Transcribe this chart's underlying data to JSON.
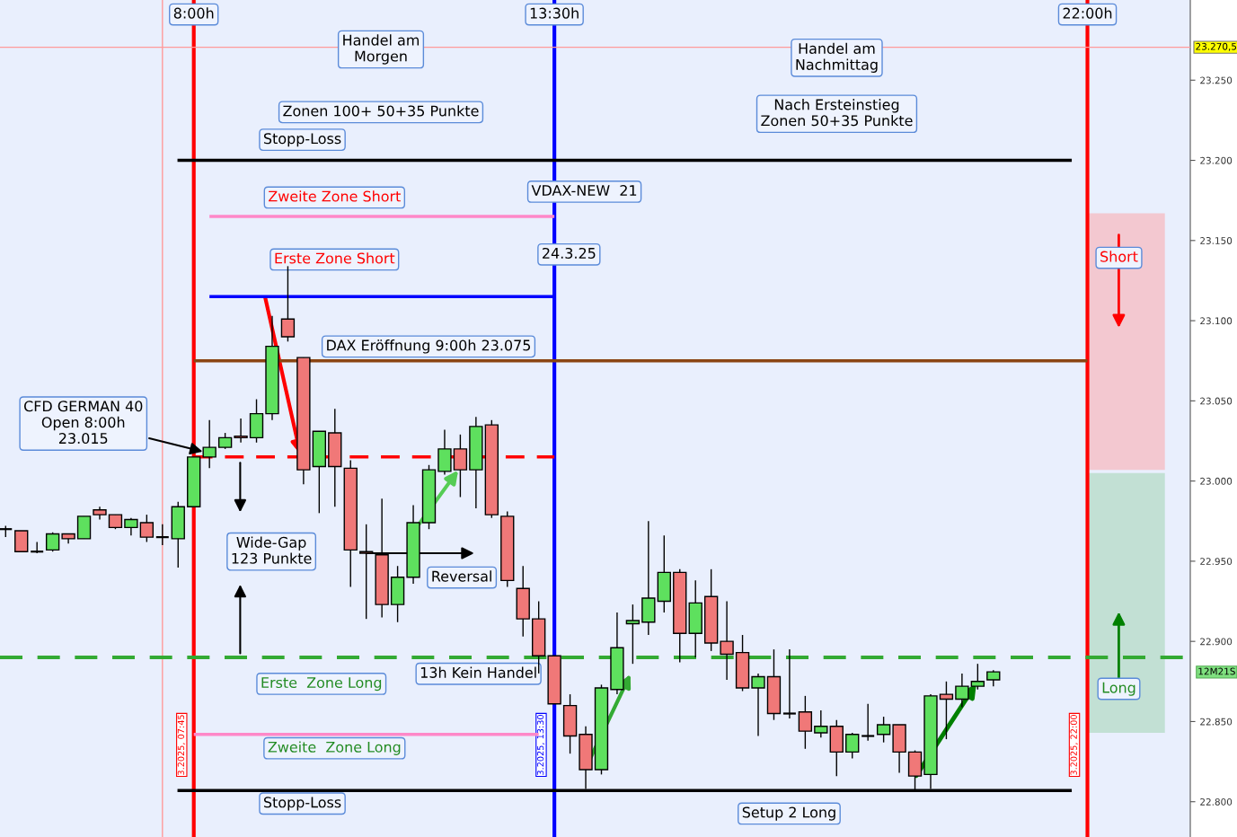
{
  "chart_data": {
    "type": "candlestick",
    "x": [
      4.75,
      5.0,
      5.25,
      5.5,
      5.75,
      6.0,
      6.25,
      6.5,
      6.75,
      7.0,
      7.25,
      7.5,
      7.75,
      8.0,
      8.25,
      8.5,
      8.75,
      9.0,
      9.25,
      9.5,
      9.75,
      10.0,
      10.25,
      10.5,
      10.75,
      11.0,
      11.25,
      11.5,
      11.75,
      12.0,
      12.25,
      12.5,
      12.75,
      13.0,
      13.25,
      13.5,
      13.75,
      14.0,
      14.25,
      14.5,
      14.75,
      15.0,
      15.25,
      15.5,
      15.75,
      16.0,
      16.25,
      16.5,
      16.75,
      17.0,
      17.25,
      17.5,
      17.75,
      18.0,
      18.25,
      18.5,
      18.75,
      19.0,
      19.25,
      19.5,
      19.75,
      20.0,
      20.25,
      20.5
    ],
    "ohlc": [
      [
        22970,
        22972,
        22965,
        22970
      ],
      [
        22969,
        22969,
        22956,
        22956
      ],
      [
        22956,
        22962,
        22955,
        22956
      ],
      [
        22957,
        22968,
        22956,
        22967
      ],
      [
        22967,
        22967,
        22961,
        22964
      ],
      [
        22964,
        22978,
        22964,
        22978
      ],
      [
        22982,
        22984,
        22976,
        22979
      ],
      [
        22979,
        22979,
        22970,
        22971
      ],
      [
        22971,
        22977,
        22966,
        22976
      ],
      [
        22974,
        22979,
        22962,
        22965
      ],
      [
        22965,
        22973,
        22960,
        22965
      ],
      [
        22964,
        22987,
        22946,
        22984
      ],
      [
        22984,
        23015,
        22984,
        23015
      ],
      [
        23015,
        23038,
        23008,
        23021
      ],
      [
        23021,
        23030,
        23020,
        23027
      ],
      [
        23028,
        23039,
        23024,
        23027
      ],
      [
        23027,
        23051,
        23024,
        23042
      ],
      [
        23042,
        23103,
        23038,
        23084
      ],
      [
        23101,
        23134,
        23087,
        23090
      ],
      [
        23077,
        23077,
        22998,
        23007
      ],
      [
        23009,
        23031,
        22980,
        23031
      ],
      [
        23030,
        23045,
        22984,
        23009
      ],
      [
        23008,
        23013,
        22934,
        22957
      ],
      [
        22956,
        22973,
        22914,
        22955
      ],
      [
        22954,
        22989,
        22915,
        22923
      ],
      [
        22923,
        22947,
        22912,
        22940
      ],
      [
        22940,
        22985,
        22936,
        22974
      ],
      [
        22974,
        23010,
        22970,
        23007
      ],
      [
        23006,
        23032,
        23004,
        23020
      ],
      [
        23020,
        23029,
        22990,
        23007
      ],
      [
        23007,
        23040,
        22983,
        23034
      ],
      [
        23035,
        23038,
        22977,
        22979
      ],
      [
        22978,
        22981,
        22934,
        22938
      ],
      [
        22933,
        22947,
        22903,
        22914
      ],
      [
        22914,
        22925,
        22880,
        22891
      ],
      [
        22891,
        22891,
        22861,
        22861
      ],
      [
        22860,
        22867,
        22830,
        22841
      ],
      [
        22842,
        22847,
        22808,
        22820
      ],
      [
        22820,
        22873,
        22817,
        22871
      ],
      [
        22870,
        22918,
        22867,
        22896
      ],
      [
        22911,
        22923,
        22886,
        22913
      ],
      [
        22912,
        22975,
        22904,
        22927
      ],
      [
        22925,
        22966,
        22918,
        22943
      ],
      [
        22943,
        22945,
        22887,
        22905
      ],
      [
        22905,
        22938,
        22890,
        22924
      ],
      [
        22928,
        22945,
        22894,
        22899
      ],
      [
        22900,
        22925,
        22876,
        22892
      ],
      [
        22893,
        22904,
        22869,
        22871
      ],
      [
        22871,
        22880,
        22841,
        22878
      ],
      [
        22878,
        22895,
        22851,
        22855
      ],
      [
        22855,
        22895,
        22852,
        22855
      ],
      [
        22856,
        22866,
        22833,
        22844
      ],
      [
        22843,
        22857,
        22840,
        22847
      ],
      [
        22847,
        22851,
        22816,
        22831
      ],
      [
        22831,
        22843,
        22827,
        22842
      ],
      [
        22841,
        22861,
        22838,
        22841
      ],
      [
        22842,
        22853,
        22837,
        22848
      ],
      [
        22848,
        22848,
        22818,
        22831
      ],
      [
        22831,
        22832,
        22806,
        22816
      ],
      [
        22817,
        22867,
        22808,
        22866
      ],
      [
        22867,
        22875,
        22839,
        22864
      ],
      [
        22864,
        22880,
        22859,
        22872
      ],
      [
        22872,
        22886,
        22870,
        22875
      ],
      [
        22876,
        22882,
        22872,
        22881
      ]
    ],
    "colors": [
      "#000000",
      "#f07878",
      "#000000",
      "#5ee05e",
      "#f07878",
      "#5ee05e",
      "#f07878",
      "#f07878",
      "#5ee05e",
      "#f07878",
      "#000000",
      "#5ee05e",
      "#5ee05e",
      "#5ee05e",
      "#5ee05e",
      "#f07878",
      "#5ee05e",
      "#5ee05e",
      "#f07878",
      "#f07878",
      "#5ee05e",
      "#f07878",
      "#f07878",
      "#f07878",
      "#f07878",
      "#5ee05e",
      "#5ee05e",
      "#5ee05e",
      "#5ee05e",
      "#f07878",
      "#5ee05e",
      "#f07878",
      "#f07878",
      "#f07878",
      "#f07878",
      "#f07878",
      "#f07878",
      "#f07878",
      "#5ee05e",
      "#5ee05e",
      "#5ee05e",
      "#5ee05e",
      "#5ee05e",
      "#f07878",
      "#5ee05e",
      "#f07878",
      "#f07878",
      "#f07878",
      "#5ee05e",
      "#f07878",
      "#000000",
      "#f07878",
      "#5ee05e",
      "#f07878",
      "#5ee05e",
      "#000000",
      "#5ee05e",
      "#f07878",
      "#f07878",
      "#5ee05e",
      "#f07878",
      "#5ee05e",
      "#5ee05e",
      "#5ee05e"
    ],
    "series": [
      {
        "type": "line",
        "x": [
          7.49,
          21.75
        ],
        "values": [
          23200,
          23200
        ],
        "color": "#000000",
        "line_style": "solid"
      },
      {
        "type": "line",
        "x": [
          8.0,
          13.5
        ],
        "values": [
          23165,
          23165
        ],
        "color": "#ff88c8",
        "line_style": "solid"
      },
      {
        "type": "line",
        "x": [
          8.0,
          13.5
        ],
        "values": [
          23115,
          23115
        ],
        "color": "#0000ff",
        "line_style": "solid"
      },
      {
        "type": "line",
        "x": [
          7.75,
          22.0
        ],
        "values": [
          23075,
          23075
        ],
        "color": "#8b4513",
        "line_style": "solid"
      },
      {
        "type": "line",
        "x": [
          7.75,
          13.5
        ],
        "values": [
          23015,
          23015
        ],
        "color": "#ff0000",
        "line_style": "dashed"
      },
      {
        "type": "line",
        "x": [
          7.75,
          13.25
        ],
        "values": [
          22842,
          22842
        ],
        "color": "#ff88c8",
        "line_style": "solid"
      },
      {
        "type": "line",
        "x": [
          7.49,
          21.75
        ],
        "values": [
          22807,
          22807
        ],
        "color": "#000000",
        "line_style": "solid"
      },
      {
        "type": "bar",
        "x": [
          22.625
        ],
        "base": [
          23007
        ],
        "values": [
          160
        ],
        "color": "#f3c8d0"
      },
      {
        "type": "bar",
        "x": [
          22.625
        ],
        "base": [
          22843
        ],
        "values": [
          162
        ],
        "color": "#c2e0d4"
      }
    ],
    "ref_lines": [
      {
        "axis": "x",
        "value": 7.25,
        "color": "#ff9a9a"
      },
      {
        "axis": "x",
        "value": 7.75,
        "label": "8:00h",
        "color": "#ff0000"
      },
      {
        "axis": "x",
        "value": 13.5,
        "label": "13:30h",
        "color": "#0000ff"
      },
      {
        "axis": "x",
        "value": 22.0,
        "label": "22:00h",
        "color": "#ff0000"
      },
      {
        "axis": "y",
        "value": 22890,
        "color": "#33aa33",
        "line_style": "dashed"
      },
      {
        "axis": "y",
        "value": 23270.5,
        "label": "23.270,5",
        "color": "#ff9a9a"
      }
    ],
    "annotations": [
      "Handel am\nMorgen",
      "Zonen 100+ 50+35 Punkte",
      "Stopp-Loss",
      "Zweite Zone Short",
      "VDAX-NEW  21",
      "Erste Zone Short",
      "24.3.25",
      "DAX Eröffnung 9:00h 23.075",
      "CFD GERMAN 40\nOpen 8:00h\n23.015",
      "Wide-Gap\n123 Punkte",
      {
        "text": "Reversal",
        "x": 10.5,
        "y": 22955
      },
      "Erste  Zone Long",
      "13h Kein Handel",
      "Zweite  Zone Long",
      "Stopp-Loss",
      "Setup 2 Long",
      "Handel am\nNachmittag",
      "Nach Ersteinstieg\nZonen 50+35 Punkte",
      "Short",
      "Long",
      "3.2025, 07:45",
      "3.2025, 13:30",
      "3.2025, 22:00",
      "12M21S"
    ],
    "xlim": [
      4.66,
      23.64
    ],
    "ylim": [
      22778,
      23300
    ],
    "yticks": [
      {
        "value": 22800,
        "label": "22.800"
      },
      {
        "value": 22850,
        "label": "22.850"
      },
      {
        "value": 22900,
        "label": "22.900"
      },
      {
        "value": 22950,
        "label": "22.950"
      },
      {
        "value": 23000,
        "label": "23.000"
      },
      {
        "value": 23050,
        "label": "23.050"
      },
      {
        "value": 23100,
        "label": "23.100"
      },
      {
        "value": 23150,
        "label": "23.150"
      },
      {
        "value": 23200,
        "label": "23.200"
      },
      {
        "value": 23250,
        "label": "23.250"
      }
    ],
    "tick_labels": "y"
  }
}
